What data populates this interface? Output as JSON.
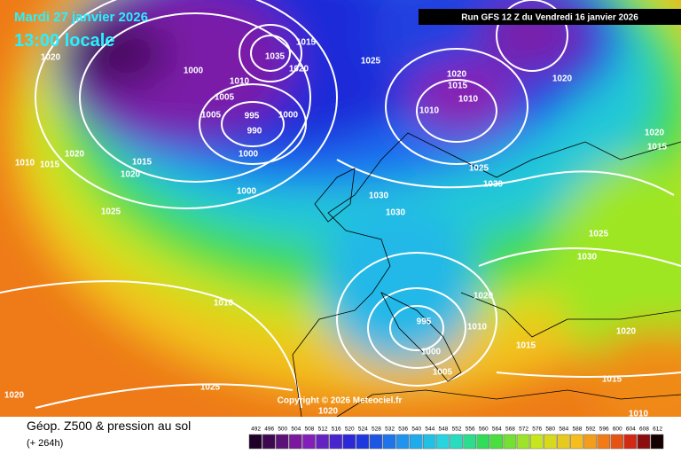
{
  "header": {
    "date": "Mardi 27 janvier 2026",
    "time": "13:00 locale",
    "run": "Run GFS 12 Z du Vendredi 16 janvier 2026"
  },
  "copyright": "Copyright © 2026 Meteociel.fr",
  "footer": {
    "title": "Géop. Z500 & pression au sol",
    "lead": "(+ 264h)"
  },
  "colorbar": {
    "labels": [
      492,
      496,
      500,
      504,
      508,
      512,
      516,
      520,
      524,
      528,
      532,
      536,
      540,
      544,
      548,
      552,
      556,
      560,
      564,
      568,
      572,
      576,
      580,
      584,
      588,
      592,
      596,
      600,
      604,
      608,
      612
    ]
  },
  "isobar_labels": [
    "1020",
    "1000",
    "1005",
    "1005",
    "995",
    "990",
    "1000",
    "1000",
    "1000",
    "1010",
    "1035",
    "1020",
    "1015",
    "1025",
    "1020",
    "1015",
    "1010",
    "1010",
    "1020",
    "1025",
    "1030",
    "1030",
    "1030",
    "1025",
    "1010",
    "1015",
    "1020",
    "1015",
    "1020",
    "1010",
    "1020",
    "1010",
    "995",
    "1000",
    "1005",
    "1015",
    "1020",
    "1025",
    "1030",
    "1020",
    "1015",
    "1025",
    "1020",
    "1020",
    "1015",
    "1010"
  ]
}
